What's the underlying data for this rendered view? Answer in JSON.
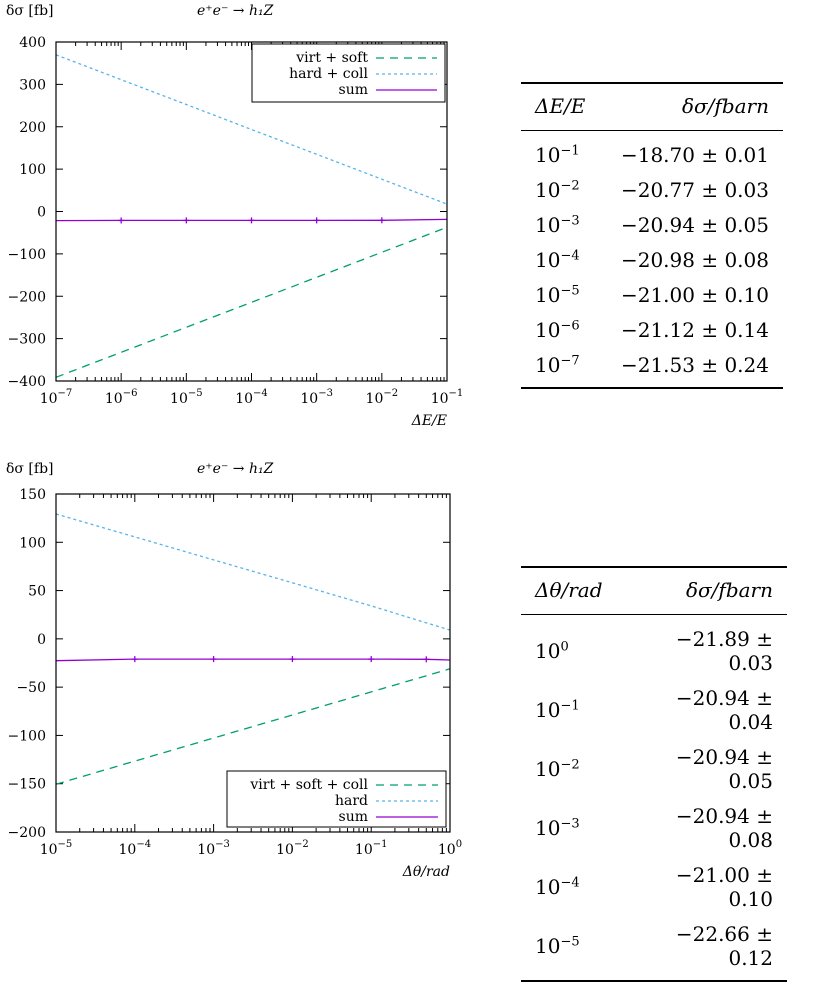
{
  "chart_data": [
    {
      "type": "line",
      "title": "e⁺e⁻ → h₁Z",
      "ylabel": "δσ [fb]",
      "xlabel": "ΔE/E",
      "xscale": "log",
      "xlim": [
        1e-07,
        0.1
      ],
      "ylim": [
        -400,
        400
      ],
      "yticks": [
        -400,
        -300,
        -200,
        -100,
        0,
        100,
        200,
        300,
        400
      ],
      "yticklabels": [
        "−400",
        "−300",
        "−200",
        "−100",
        "0",
        "100",
        "200",
        "300",
        "400"
      ],
      "xticks": [
        1e-07,
        1e-06,
        1e-05,
        0.0001,
        0.001,
        0.01,
        0.1
      ],
      "xtick_base": "10",
      "xtick_exps": [
        "−7",
        "−6",
        "−5",
        "−4",
        "−3",
        "−2",
        "−1"
      ],
      "legend_position": "top-right",
      "series": [
        {
          "name": "virt + soft",
          "style": "dashed",
          "color": "#009e73",
          "x": [
            1e-07,
            1e-06,
            1e-05,
            0.0001,
            0.001,
            0.01,
            0.1
          ],
          "y": [
            -391.3,
            -332.3,
            -273.3,
            -214.2,
            -155.2,
            -96.2,
            -37.2
          ]
        },
        {
          "name": "hard + coll",
          "style": "dotted",
          "color": "#56b4e9",
          "x": [
            1e-07,
            1e-06,
            1e-05,
            0.0001,
            0.001,
            0.01,
            0.1
          ],
          "y": [
            369.8,
            311.1,
            252.4,
            193.6,
            134.9,
            76.2,
            17.5
          ]
        },
        {
          "name": "sum",
          "style": "solid",
          "color": "#9400d3",
          "markers": true,
          "x": [
            1e-07,
            1e-06,
            1e-05,
            0.0001,
            0.001,
            0.01,
            0.1
          ],
          "y": [
            -21.53,
            -21.12,
            -21.0,
            -20.98,
            -20.94,
            -20.77,
            -18.7
          ]
        }
      ]
    },
    {
      "type": "line",
      "title": "e⁺e⁻ → h₁Z",
      "ylabel": "δσ [fb]",
      "xlabel": "Δθ/rad",
      "xscale": "log",
      "xlim": [
        1e-05,
        1
      ],
      "ylim": [
        -200,
        150
      ],
      "yticks": [
        -200,
        -150,
        -100,
        -50,
        0,
        50,
        100,
        150
      ],
      "yticklabels": [
        "−200",
        "−150",
        "−100",
        "−50",
        "0",
        "50",
        "100",
        "150"
      ],
      "xticks": [
        1e-05,
        0.0001,
        0.001,
        0.01,
        0.1,
        1
      ],
      "xtick_base": "10",
      "xtick_exps": [
        "−5",
        "−4",
        "−3",
        "−2",
        "−1",
        "0"
      ],
      "legend_position": "bottom-right",
      "series": [
        {
          "name": "virt + soft + coll",
          "style": "dashed",
          "color": "#009e73",
          "x": [
            1e-05,
            0.0001,
            0.001,
            0.01,
            0.1,
            1
          ],
          "y": [
            -150.5,
            -126.6,
            -102.7,
            -78.8,
            -54.9,
            -31.0
          ]
        },
        {
          "name": "hard",
          "style": "dotted",
          "color": "#56b4e9",
          "x": [
            1e-05,
            0.0001,
            0.001,
            0.01,
            0.1,
            1
          ],
          "y": [
            129.3,
            105.6,
            81.8,
            58.0,
            34.1,
            9.1
          ]
        },
        {
          "name": "sum",
          "style": "solid",
          "color": "#9400d3",
          "markers": true,
          "x": [
            1e-05,
            0.0001,
            0.001,
            0.01,
            0.1,
            0.5,
            1
          ],
          "y": [
            -22.66,
            -21.0,
            -20.94,
            -20.94,
            -20.94,
            -21.2,
            -21.89
          ]
        }
      ]
    }
  ],
  "tables": [
    {
      "header": [
        "ΔE/E",
        "δσ/fbarn"
      ],
      "rows": [
        {
          "base": "10",
          "exp": "−1",
          "value": "−18.70 ± 0.01"
        },
        {
          "base": "10",
          "exp": "−2",
          "value": "−20.77 ± 0.03"
        },
        {
          "base": "10",
          "exp": "−3",
          "value": "−20.94 ± 0.05"
        },
        {
          "base": "10",
          "exp": "−4",
          "value": "−20.98 ± 0.08"
        },
        {
          "base": "10",
          "exp": "−5",
          "value": "−21.00 ± 0.10"
        },
        {
          "base": "10",
          "exp": "−6",
          "value": "−21.12 ± 0.14"
        },
        {
          "base": "10",
          "exp": "−7",
          "value": "−21.53 ± 0.24"
        }
      ]
    },
    {
      "header": [
        "Δθ/rad",
        "δσ/fbarn"
      ],
      "rows": [
        {
          "base": "10",
          "exp": "0",
          "value": "−21.89 ± 0.03"
        },
        {
          "base": "10",
          "exp": "−1",
          "value": "−20.94 ± 0.04"
        },
        {
          "base": "10",
          "exp": "−2",
          "value": "−20.94 ± 0.05"
        },
        {
          "base": "10",
          "exp": "−3",
          "value": "−20.94 ± 0.08"
        },
        {
          "base": "10",
          "exp": "−4",
          "value": "−21.00 ± 0.10"
        },
        {
          "base": "10",
          "exp": "−5",
          "value": "−22.66 ± 0.12"
        }
      ]
    }
  ]
}
